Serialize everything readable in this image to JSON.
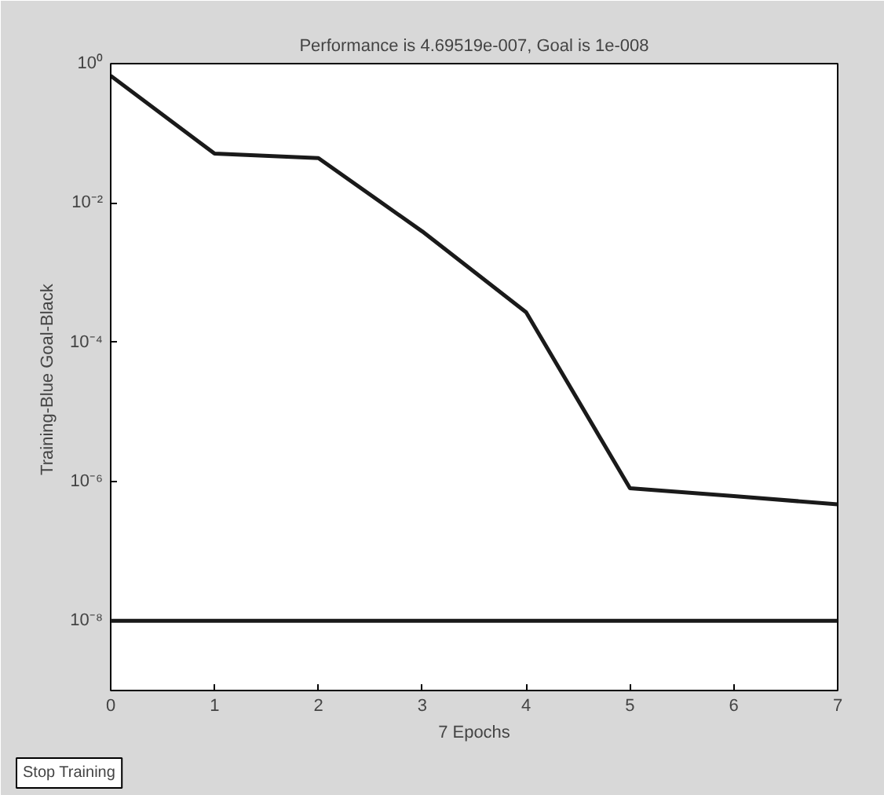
{
  "chart_data": {
    "type": "line",
    "title": "Performance is 4.69519e-007, Goal is 1e-008",
    "xlabel": "7 Epochs",
    "ylabel": "Training-Blue  Goal-Black",
    "x": [
      0,
      1,
      2,
      3,
      4,
      5,
      6,
      7
    ],
    "series": [
      {
        "color": "#1a1a1a",
        "values": [
          0.67,
          0.051,
          0.044,
          0.0039,
          0.00027,
          8e-07,
          6.2e-07,
          4.7e-07
        ]
      }
    ],
    "log": "y",
    "xlim": [
      0,
      7
    ],
    "ylim": [
      1e-09,
      1
    ],
    "xticks": [
      0,
      1,
      2,
      3,
      4,
      5,
      6,
      7
    ],
    "yticks": [
      {
        "value": 1e-08,
        "label": "10⁻⁸"
      },
      {
        "value": 1e-06,
        "label": "10⁻⁶"
      },
      {
        "value": 0.0001,
        "label": "10⁻⁴"
      },
      {
        "value": 0.01,
        "label": "10⁻²"
      },
      {
        "value": 1,
        "label": "10⁰"
      }
    ],
    "ref_lines": [
      {
        "axis": "y",
        "value": 1e-08,
        "color": "#1a1a1a"
      }
    ],
    "grid": false,
    "annotations": [
      "Stop Training"
    ]
  }
}
